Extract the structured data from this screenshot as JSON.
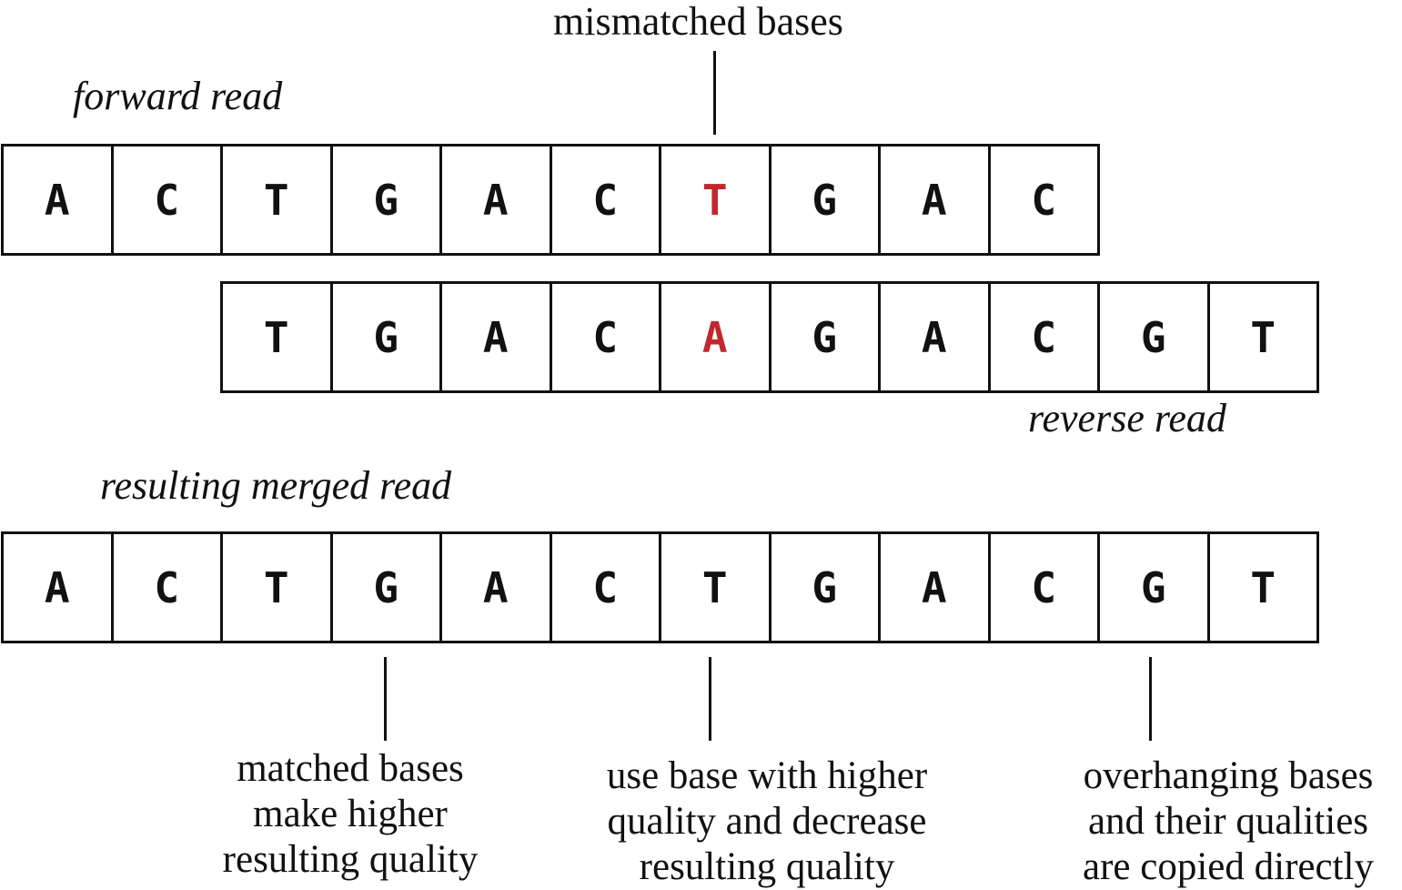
{
  "labels": {
    "forward": "forward read",
    "reverse": "reverse read",
    "merged": "resulting merged read",
    "mismatch": "mismatched bases"
  },
  "rows": {
    "forward": [
      "A",
      "C",
      "T",
      "G",
      "A",
      "C",
      "T",
      "G",
      "A",
      "C"
    ],
    "reverse": [
      "T",
      "G",
      "A",
      "C",
      "A",
      "G",
      "A",
      "C",
      "G",
      "T"
    ],
    "merged": [
      "A",
      "C",
      "T",
      "G",
      "A",
      "C",
      "T",
      "G",
      "A",
      "C",
      "G",
      "T"
    ]
  },
  "mismatch": {
    "forward_index": 6,
    "reverse_index": 4,
    "color": "#c0282e"
  },
  "notes": {
    "matched": [
      "matched bases",
      "make higher",
      "resulting quality"
    ],
    "mismatched": [
      "use base with higher",
      "quality and decrease",
      "resulting quality"
    ],
    "overhang": [
      "overhanging bases",
      "and their qualities",
      "are copied directly"
    ]
  }
}
